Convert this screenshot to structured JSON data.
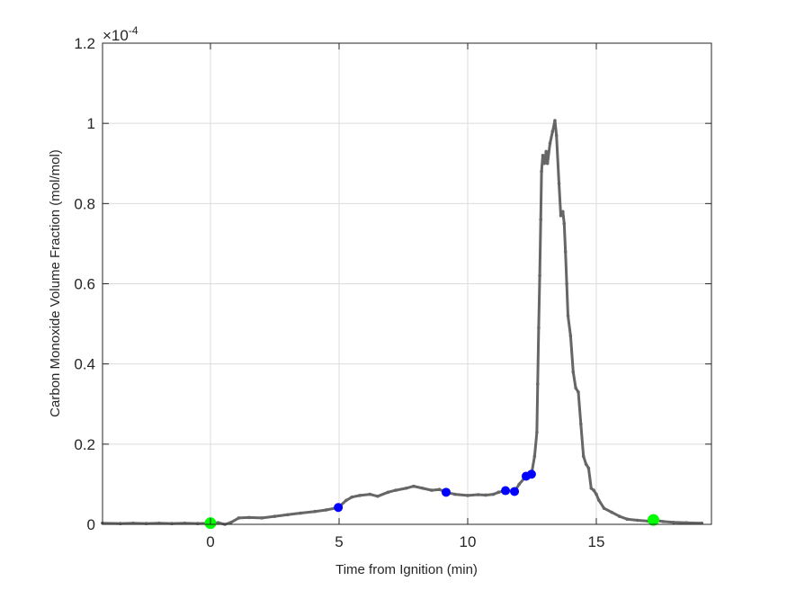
{
  "chart_data": {
    "type": "line",
    "title": "",
    "xlabel": "Time from Ignition (min)",
    "ylabel": "Carbon Monoxide Volume Fraction (mol/mol)",
    "y_exponent_label": "×10",
    "y_exponent_power": "-4",
    "y_scale_factor": 0.0001,
    "xlim": [
      -4.2,
      19.5
    ],
    "ylim": [
      0,
      1.2
    ],
    "x_ticks": [
      0,
      5,
      10,
      15
    ],
    "x_tick_labels": [
      "0",
      "5",
      "10",
      "15"
    ],
    "y_ticks": [
      0,
      0.2,
      0.4,
      0.6,
      0.8,
      1,
      1.2
    ],
    "y_tick_labels": [
      "0",
      "0.2",
      "0.4",
      "0.6",
      "0.8",
      "1",
      "1.2"
    ],
    "grid": true,
    "legend": null,
    "series": [
      {
        "name": "CO volume fraction",
        "color": "#666666",
        "marker": "dot",
        "x": [
          -4.2,
          -3.5,
          -3.0,
          -2.5,
          -2.0,
          -1.5,
          -1.0,
          -0.5,
          0.0,
          0.3,
          0.56,
          0.8,
          1.1,
          1.5,
          2.0,
          2.5,
          3.0,
          3.5,
          4.06,
          4.5,
          4.97,
          5.28,
          5.5,
          5.8,
          6.2,
          6.5,
          6.9,
          7.2,
          7.6,
          7.9,
          8.25,
          8.6,
          8.9,
          9.16,
          9.5,
          10.0,
          10.4,
          10.7,
          11.0,
          11.2,
          11.47,
          11.82,
          12.0,
          12.27,
          12.48,
          12.6,
          12.69,
          12.72,
          12.76,
          12.8,
          12.84,
          12.87,
          12.92,
          12.98,
          13.05,
          13.1,
          13.2,
          13.3,
          13.39,
          13.45,
          13.55,
          13.62,
          13.7,
          13.75,
          13.8,
          13.85,
          13.9,
          14.0,
          14.1,
          14.2,
          14.3,
          14.4,
          14.5,
          14.6,
          14.7,
          14.8,
          14.9,
          15.0,
          15.1,
          15.3,
          15.6,
          15.9,
          16.2,
          16.6,
          17.0,
          17.22,
          17.6,
          18.0,
          18.5,
          19.1
        ],
        "y": [
          0.003,
          0.002,
          0.003,
          0.002,
          0.003,
          0.002,
          0.003,
          0.002,
          0.003,
          0.004,
          0.0,
          0.005,
          0.016,
          0.017,
          0.016,
          0.02,
          0.024,
          0.028,
          0.032,
          0.036,
          0.042,
          0.06,
          0.068,
          0.072,
          0.075,
          0.07,
          0.08,
          0.085,
          0.09,
          0.095,
          0.09,
          0.085,
          0.087,
          0.08,
          0.075,
          0.072,
          0.074,
          0.073,
          0.075,
          0.08,
          0.084,
          0.082,
          0.1,
          0.12,
          0.125,
          0.17,
          0.23,
          0.35,
          0.49,
          0.62,
          0.76,
          0.88,
          0.92,
          0.9,
          0.93,
          0.9,
          0.95,
          0.98,
          1.007,
          0.97,
          0.85,
          0.77,
          0.78,
          0.75,
          0.68,
          0.6,
          0.52,
          0.47,
          0.38,
          0.34,
          0.33,
          0.25,
          0.17,
          0.15,
          0.14,
          0.09,
          0.085,
          0.075,
          0.06,
          0.04,
          0.03,
          0.02,
          0.013,
          0.01,
          0.008,
          0.011,
          0.007,
          0.005,
          0.004,
          0.003
        ]
      },
      {
        "name": "Green markers",
        "color": "#00FF00",
        "marker": "circle",
        "x": [
          0.0,
          17.22
        ],
        "y": [
          0.003,
          0.011
        ]
      },
      {
        "name": "Blue markers",
        "color": "#0000FF",
        "marker": "circle",
        "x": [
          4.97,
          9.16,
          11.47,
          11.82,
          12.27,
          12.48
        ],
        "y": [
          0.042,
          0.08,
          0.084,
          0.082,
          0.12,
          0.125
        ]
      }
    ]
  }
}
